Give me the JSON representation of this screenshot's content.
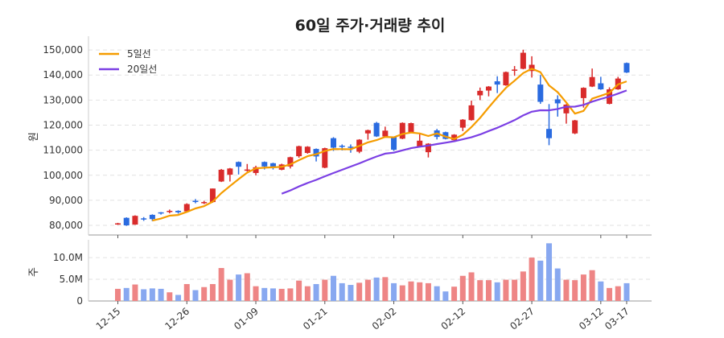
{
  "chart_data": [
    {
      "type": "candlestick",
      "title": "60일 주가·거래량 추이",
      "ylabel": "원",
      "ylim": [
        76150,
        155500
      ],
      "yticks": [
        "80,000",
        "90,000",
        "100,000",
        "110,000",
        "120,000",
        "130,000",
        "140,000",
        "150,000"
      ],
      "ytick_values": [
        80000,
        90000,
        100000,
        110000,
        120000,
        130000,
        140000,
        150000
      ],
      "grid": true,
      "legend_position": "top-left",
      "legend": [
        {
          "name": "5일선",
          "color": "#f59c00",
          "window": 5
        },
        {
          "name": "20일선",
          "color": "#7b3fe4",
          "window": 20
        }
      ],
      "up_color": "#d92b2b",
      "down_color": "#2a6be0",
      "ohlc": [
        [
          80500,
          81000,
          80200,
          80800
        ],
        [
          83000,
          83200,
          79800,
          80000
        ],
        [
          80300,
          84000,
          80200,
          83800
        ],
        [
          82800,
          83300,
          81800,
          82400
        ],
        [
          84200,
          84400,
          81700,
          82500
        ],
        [
          85200,
          85300,
          84300,
          84800
        ],
        [
          85300,
          86300,
          84800,
          85800
        ],
        [
          85800,
          86000,
          84700,
          85200
        ],
        [
          85600,
          88800,
          85400,
          88500
        ],
        [
          89800,
          90500,
          88800,
          89500
        ],
        [
          89000,
          89800,
          88500,
          89300
        ],
        [
          89300,
          94700,
          89000,
          94700
        ],
        [
          97500,
          102500,
          97300,
          102200
        ],
        [
          100200,
          102900,
          97500,
          102700
        ],
        [
          105300,
          105500,
          100300,
          103400
        ],
        [
          101800,
          104500,
          101500,
          102300
        ],
        [
          100900,
          103800,
          100000,
          103200
        ],
        [
          105300,
          105500,
          102300,
          103500
        ],
        [
          104800,
          105000,
          102300,
          103500
        ],
        [
          102200,
          104600,
          102000,
          104300
        ],
        [
          103500,
          107400,
          102700,
          107200
        ],
        [
          107600,
          111800,
          107000,
          111600
        ],
        [
          108900,
          111600,
          108600,
          111400
        ],
        [
          110500,
          110700,
          105500,
          107500
        ],
        [
          103000,
          111000,
          102800,
          110800
        ],
        [
          114800,
          115200,
          109700,
          111000
        ],
        [
          111800,
          112300,
          109900,
          111500
        ],
        [
          111400,
          112300,
          109000,
          111000
        ],
        [
          109400,
          114400,
          108800,
          114200
        ],
        [
          116700,
          118200,
          114200,
          118000
        ],
        [
          120900,
          121300,
          115300,
          115500
        ],
        [
          115500,
          119400,
          115300,
          117800
        ],
        [
          115200,
          115400,
          109700,
          110200
        ],
        [
          114600,
          121100,
          114400,
          120900
        ],
        [
          117200,
          121000,
          117000,
          120800
        ],
        [
          111300,
          116400,
          111100,
          113800
        ],
        [
          109200,
          112800,
          107100,
          112600
        ],
        [
          117900,
          118500,
          114300,
          115300
        ],
        [
          117200,
          117400,
          114300,
          114500
        ],
        [
          114000,
          116400,
          113300,
          116200
        ],
        [
          119000,
          122400,
          117600,
          122200
        ],
        [
          122000,
          129800,
          121800,
          127900
        ],
        [
          131900,
          135000,
          130000,
          133700
        ],
        [
          133800,
          135600,
          131500,
          135400
        ],
        [
          137500,
          139500,
          132800,
          136200
        ],
        [
          135900,
          141400,
          135700,
          141200
        ],
        [
          141900,
          143600,
          139700,
          142200
        ],
        [
          142500,
          150100,
          142300,
          148900
        ],
        [
          141600,
          147500,
          139000,
          144100
        ],
        [
          136200,
          140000,
          128500,
          129300
        ],
        [
          118500,
          128400,
          112000,
          114800
        ],
        [
          130300,
          131900,
          123400,
          128700
        ],
        [
          124700,
          128400,
          120600,
          128200
        ],
        [
          116700,
          122100,
          116400,
          121900
        ],
        [
          130800,
          135100,
          127000,
          134900
        ],
        [
          135400,
          142600,
          135200,
          139200
        ],
        [
          136700,
          139300,
          134100,
          134300
        ],
        [
          128500,
          135100,
          128300,
          134300
        ],
        [
          134300,
          139300,
          134100,
          138600
        ],
        [
          144800,
          145000,
          140800,
          141000
        ]
      ]
    },
    {
      "type": "bar",
      "ylabel": "주",
      "ylim": [
        0,
        14100000
      ],
      "yticks": [
        "0",
        "5.0M",
        "10.0M"
      ],
      "ytick_values": [
        0,
        5000000,
        10000000
      ],
      "grid": true,
      "up_color": "#ee8585",
      "down_color": "#88a8f0",
      "categories_ticks": [
        {
          "index": 0,
          "label": "12-15"
        },
        {
          "index": 8,
          "label": "12-26"
        },
        {
          "index": 16,
          "label": "01-09"
        },
        {
          "index": 24,
          "label": "01-21"
        },
        {
          "index": 32,
          "label": "02-02"
        },
        {
          "index": 40,
          "label": "02-12"
        },
        {
          "index": 48,
          "label": "02-27"
        },
        {
          "index": 56,
          "label": "03-12"
        },
        {
          "index": 59,
          "label": "03-17"
        }
      ],
      "values": [
        2800000,
        3000000,
        3800000,
        2700000,
        2900000,
        2800000,
        2000000,
        1400000,
        3900000,
        2500000,
        3200000,
        3900000,
        7600000,
        4900000,
        6100000,
        6400000,
        3400000,
        3000000,
        2900000,
        2800000,
        2900000,
        4700000,
        3400000,
        3900000,
        4900000,
        5800000,
        4100000,
        3700000,
        4200000,
        4900000,
        5400000,
        5500000,
        4100000,
        3600000,
        4500000,
        4300000,
        4100000,
        3400000,
        2200000,
        3300000,
        5800000,
        6600000,
        4800000,
        4800000,
        4300000,
        4900000,
        4900000,
        6800000,
        10000000,
        9300000,
        13300000,
        7500000,
        4900000,
        4800000,
        6100000,
        7100000,
        4500000,
        3000000,
        3400000,
        4100000
      ]
    }
  ]
}
